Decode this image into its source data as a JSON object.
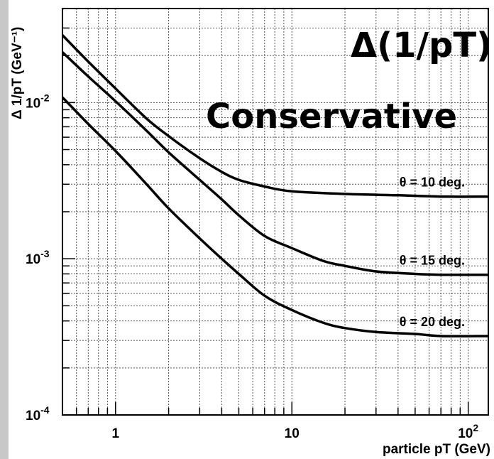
{
  "chart_data": {
    "type": "line",
    "title": "Δ(1/pT)",
    "subtitle": "Conservative",
    "xlabel": "particle pT (GeV)",
    "ylabel": "Δ 1/pT (GeV⁻¹)",
    "x_scale": "log",
    "y_scale": "log",
    "xlim": [
      0.5,
      130
    ],
    "ylim": [
      0.0001,
      0.04
    ],
    "grid": true,
    "x_ticks": [
      {
        "value": 1,
        "label": "1"
      },
      {
        "value": 10,
        "label": "10"
      },
      {
        "value": 100,
        "label": "10",
        "exp": "2"
      }
    ],
    "y_ticks": [
      {
        "value": 0.0001,
        "label": "10",
        "exp": "-4"
      },
      {
        "value": 0.001,
        "label": "10",
        "exp": "-3"
      },
      {
        "value": 0.01,
        "label": "10",
        "exp": "-2"
      }
    ],
    "series": [
      {
        "name": "θ = 10 deg.",
        "x": [
          0.5,
          0.7,
          1,
          1.5,
          2,
          3,
          4,
          5,
          7,
          10,
          20,
          40,
          70,
          130
        ],
        "y": [
          0.027,
          0.0183,
          0.0123,
          0.0079,
          0.0061,
          0.0044,
          0.0036,
          0.0032,
          0.0029,
          0.0027,
          0.0026,
          0.00255,
          0.0025,
          0.0025
        ]
      },
      {
        "name": "θ = 15 deg.",
        "x": [
          0.5,
          0.7,
          1,
          1.5,
          2,
          3,
          4,
          5,
          7,
          10,
          15,
          20,
          30,
          50,
          70,
          130
        ],
        "y": [
          0.021,
          0.0147,
          0.0102,
          0.0066,
          0.0048,
          0.0032,
          0.0024,
          0.0019,
          0.0014,
          0.00117,
          0.00097,
          0.0009,
          0.00083,
          0.0008,
          0.00079,
          0.00079
        ]
      },
      {
        "name": "θ = 20 deg.",
        "x": [
          0.5,
          0.7,
          1,
          1.5,
          2,
          3,
          4,
          5,
          7,
          10,
          15,
          20,
          30,
          50,
          70,
          130
        ],
        "y": [
          0.0108,
          0.0073,
          0.0049,
          0.003,
          0.0021,
          0.00135,
          0.001,
          0.0008,
          0.00058,
          0.00047,
          0.00039,
          0.00036,
          0.00034,
          0.00033,
          0.00032,
          0.00032
        ]
      }
    ]
  }
}
